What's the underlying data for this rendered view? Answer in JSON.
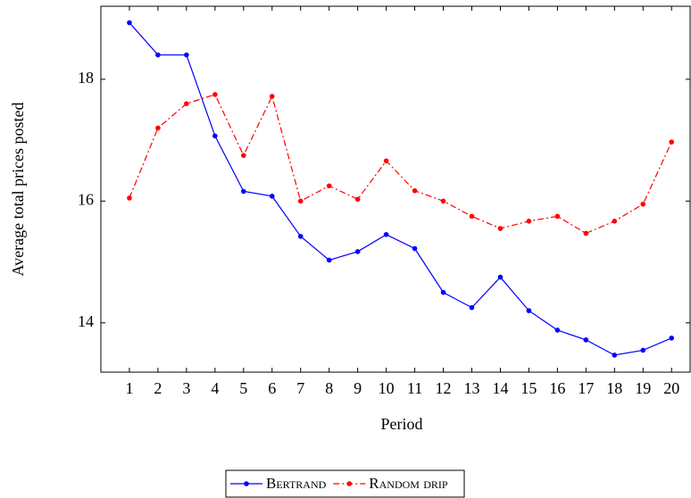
{
  "chart_data": {
    "type": "line",
    "x": [
      1,
      2,
      3,
      4,
      5,
      6,
      7,
      8,
      9,
      10,
      11,
      12,
      13,
      14,
      15,
      16,
      17,
      18,
      19,
      20
    ],
    "series": [
      {
        "name": "Bertrand",
        "color": "#0000ff",
        "dash": "solid",
        "values": [
          18.93,
          18.4,
          18.4,
          17.07,
          16.16,
          16.08,
          15.42,
          15.03,
          15.17,
          15.45,
          15.22,
          14.5,
          14.25,
          14.75,
          14.2,
          13.88,
          13.72,
          13.47,
          13.55,
          13.75
        ]
      },
      {
        "name": "Random drip",
        "color": "#ff0000",
        "dash": "dashdot",
        "values": [
          16.05,
          17.2,
          17.6,
          17.75,
          16.75,
          17.72,
          16.0,
          16.25,
          16.03,
          16.66,
          16.17,
          16.0,
          15.75,
          15.55,
          15.67,
          15.75,
          15.47,
          15.67,
          15.95,
          16.97
        ]
      }
    ],
    "xlabel": "Period",
    "ylabel": "Average total prices posted",
    "xlim": [
      0,
      20.65
    ],
    "ylim": [
      13.19,
      19.2
    ],
    "xticks": [
      1,
      2,
      3,
      4,
      5,
      6,
      7,
      8,
      9,
      10,
      11,
      12,
      13,
      14,
      15,
      16,
      17,
      18,
      19,
      20
    ],
    "yticks": [
      14,
      16,
      18
    ],
    "legend": "bottom"
  }
}
